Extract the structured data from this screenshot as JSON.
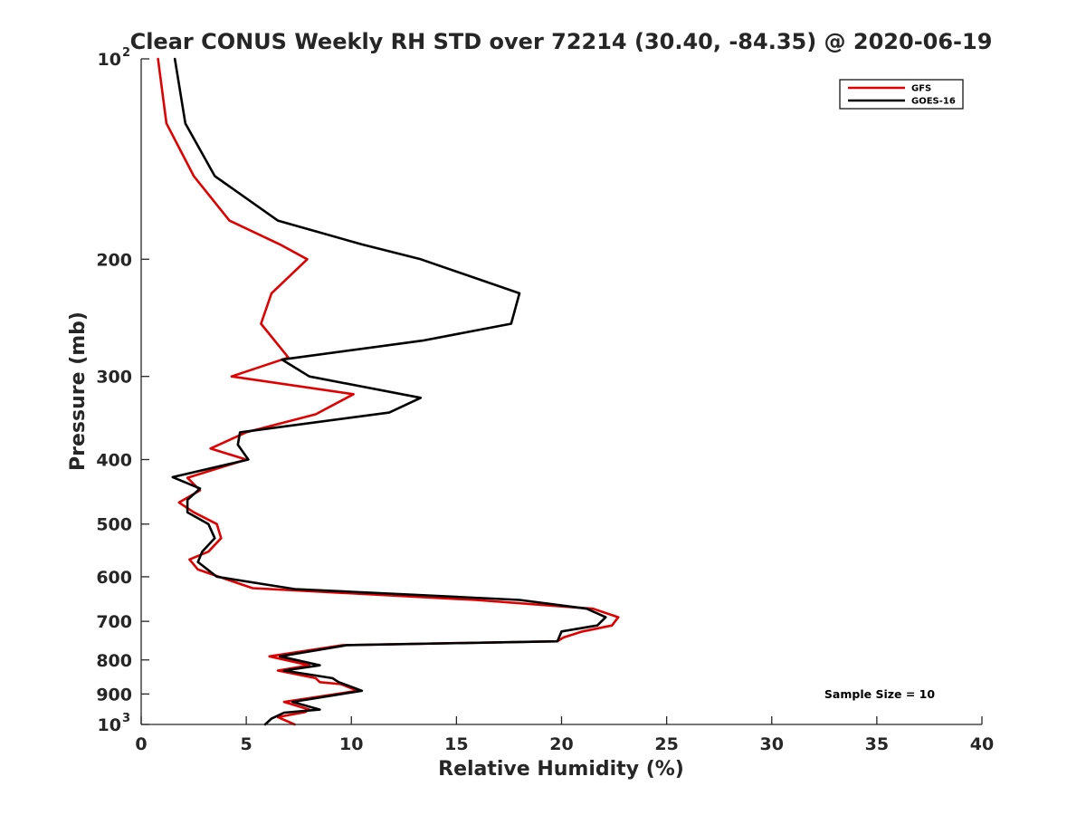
{
  "chart_data": {
    "type": "line",
    "title": "Clear CONUS Weekly RH STD over 72214 (30.40, -84.35) @ 2020-06-19",
    "xlabel": "Relative Humidity (%)",
    "ylabel": "Pressure (mb)",
    "xlim": [
      0,
      40
    ],
    "ylim": [
      100,
      1000
    ],
    "yscale": "log-reversed",
    "x_ticks": [
      0,
      5,
      10,
      15,
      20,
      25,
      30,
      35,
      40
    ],
    "x_tick_labels": [
      "0",
      "5",
      "10",
      "15",
      "20",
      "25",
      "30",
      "35",
      "40"
    ],
    "y_ticks": [
      100,
      200,
      300,
      400,
      500,
      600,
      700,
      800,
      900,
      1000
    ],
    "y_tick_labels": [
      {
        "text": "10",
        "exp": "2"
      },
      {
        "text": "200",
        "exp": ""
      },
      {
        "text": "300",
        "exp": ""
      },
      {
        "text": "400",
        "exp": ""
      },
      {
        "text": "500",
        "exp": ""
      },
      {
        "text": "600",
        "exp": ""
      },
      {
        "text": "700",
        "exp": ""
      },
      {
        "text": "800",
        "exp": ""
      },
      {
        "text": "900",
        "exp": ""
      },
      {
        "text": "10",
        "exp": "3"
      }
    ],
    "annotation": "Sample Size = 10",
    "legend_position": "top-right",
    "series": [
      {
        "name": "GFS",
        "color": "#e00000",
        "points": [
          [
            0.8,
            100
          ],
          [
            1.2,
            125
          ],
          [
            2.5,
            150
          ],
          [
            4.2,
            175
          ],
          [
            6.6,
            190
          ],
          [
            7.9,
            200
          ],
          [
            6.2,
            225
          ],
          [
            5.7,
            250
          ],
          [
            7.0,
            281
          ],
          [
            4.3,
            300
          ],
          [
            10.1,
            319
          ],
          [
            8.3,
            342
          ],
          [
            5.0,
            364
          ],
          [
            3.3,
            385
          ],
          [
            5.0,
            400
          ],
          [
            2.2,
            426
          ],
          [
            2.8,
            445
          ],
          [
            1.8,
            464
          ],
          [
            2.5,
            480
          ],
          [
            3.6,
            500
          ],
          [
            3.8,
            525
          ],
          [
            3.2,
            550
          ],
          [
            2.3,
            565
          ],
          [
            2.7,
            585
          ],
          [
            3.7,
            600
          ],
          [
            5.3,
            624
          ],
          [
            15.9,
            650
          ],
          [
            21.5,
            670
          ],
          [
            22.7,
            690
          ],
          [
            22.4,
            710
          ],
          [
            21.0,
            725
          ],
          [
            20.1,
            740
          ],
          [
            19.8,
            750
          ],
          [
            9.6,
            760
          ],
          [
            6.1,
            790
          ],
          [
            8.0,
            815
          ],
          [
            6.5,
            830
          ],
          [
            8.3,
            852
          ],
          [
            8.5,
            864
          ],
          [
            9.5,
            870
          ],
          [
            10.3,
            890
          ],
          [
            6.8,
            925
          ],
          [
            8.0,
            950
          ],
          [
            7.8,
            958
          ],
          [
            6.5,
            975
          ],
          [
            7.3,
            1000
          ]
        ]
      },
      {
        "name": "GOES-16",
        "color": "#000000",
        "points": [
          [
            1.6,
            100
          ],
          [
            2.1,
            125
          ],
          [
            3.5,
            150
          ],
          [
            6.5,
            175
          ],
          [
            10.5,
            190
          ],
          [
            13.3,
            200
          ],
          [
            18.0,
            225
          ],
          [
            17.6,
            250
          ],
          [
            13.4,
            265
          ],
          [
            6.7,
            283
          ],
          [
            8.0,
            300
          ],
          [
            13.3,
            323
          ],
          [
            11.8,
            340
          ],
          [
            4.7,
            364
          ],
          [
            4.6,
            380
          ],
          [
            5.1,
            400
          ],
          [
            1.5,
            425
          ],
          [
            2.8,
            442
          ],
          [
            2.2,
            460
          ],
          [
            2.2,
            480
          ],
          [
            3.2,
            500
          ],
          [
            3.5,
            525
          ],
          [
            2.9,
            550
          ],
          [
            2.7,
            570
          ],
          [
            3.6,
            600
          ],
          [
            7.3,
            626
          ],
          [
            18.0,
            650
          ],
          [
            21.2,
            670
          ],
          [
            22.1,
            690
          ],
          [
            21.7,
            710
          ],
          [
            20.0,
            725
          ],
          [
            19.8,
            750
          ],
          [
            9.8,
            760
          ],
          [
            6.6,
            790
          ],
          [
            8.5,
            815
          ],
          [
            6.8,
            830
          ],
          [
            9.1,
            852
          ],
          [
            9.4,
            864
          ],
          [
            10.5,
            890
          ],
          [
            7.2,
            925
          ],
          [
            8.5,
            950
          ],
          [
            6.8,
            960
          ],
          [
            6.2,
            980
          ],
          [
            5.9,
            1000
          ]
        ]
      }
    ]
  }
}
